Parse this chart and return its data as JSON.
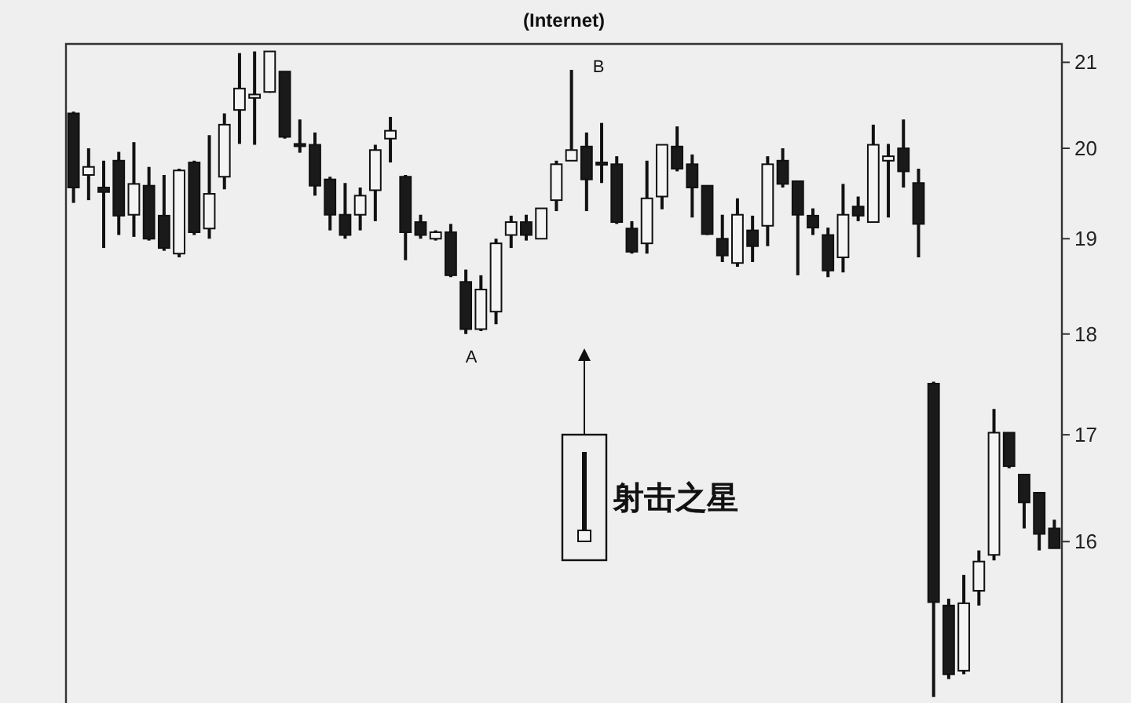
{
  "chart_data": {
    "type": "candlestick",
    "title": "(Internet)",
    "categories": [
      null,
      null,
      null,
      null,
      null,
      null,
      null,
      null,
      null,
      null,
      null,
      null,
      null,
      null,
      null,
      null,
      null,
      null,
      null,
      null,
      null,
      null,
      null,
      null,
      null,
      null,
      null,
      null,
      null,
      null,
      null,
      null,
      null,
      null,
      null,
      null,
      null,
      null,
      null,
      null,
      null,
      null,
      null,
      null,
      null,
      null,
      null,
      null,
      null,
      null,
      null,
      null,
      null,
      null,
      null,
      null,
      null,
      null,
      null,
      null,
      null,
      null,
      null,
      null,
      null,
      null
    ],
    "ohlc": [
      [
        20.4,
        20.42,
        19.39,
        19.56
      ],
      [
        19.7,
        20.0,
        19.42,
        19.79
      ],
      [
        19.56,
        19.86,
        18.9,
        19.51
      ],
      [
        19.86,
        19.96,
        19.04,
        19.25
      ],
      [
        19.26,
        20.07,
        19.02,
        19.6
      ],
      [
        19.58,
        19.79,
        18.98,
        19.0
      ],
      [
        19.25,
        19.7,
        18.87,
        18.9
      ],
      [
        18.84,
        19.77,
        18.8,
        19.75
      ],
      [
        19.84,
        19.86,
        19.04,
        19.07
      ],
      [
        19.11,
        20.15,
        19.0,
        19.49
      ],
      [
        19.68,
        20.4,
        19.54,
        20.27
      ],
      [
        20.44,
        21.11,
        20.05,
        20.69
      ],
      [
        20.58,
        21.13,
        20.04,
        20.62
      ],
      [
        20.65,
        21.13,
        20.64,
        21.13
      ],
      [
        20.89,
        20.89,
        20.11,
        20.13
      ],
      [
        20.05,
        20.33,
        19.95,
        20.03
      ],
      [
        20.04,
        20.18,
        19.47,
        19.58
      ],
      [
        19.65,
        19.68,
        19.09,
        19.26
      ],
      [
        19.26,
        19.61,
        19.0,
        19.04
      ],
      [
        19.26,
        19.56,
        19.09,
        19.47
      ],
      [
        19.53,
        20.04,
        19.19,
        19.98
      ],
      [
        20.11,
        20.36,
        19.84,
        20.2
      ],
      [
        19.68,
        19.7,
        18.77,
        19.07
      ],
      [
        19.18,
        19.26,
        19.0,
        19.04
      ],
      [
        19.0,
        19.09,
        18.98,
        19.07
      ],
      [
        19.07,
        19.16,
        18.59,
        18.61
      ],
      [
        18.54,
        18.67,
        18.0,
        18.05
      ],
      [
        18.05,
        18.61,
        18.03,
        18.46
      ],
      [
        18.23,
        19.0,
        18.1,
        18.95
      ],
      [
        19.04,
        19.25,
        18.9,
        19.18
      ],
      [
        19.18,
        19.26,
        18.98,
        19.04
      ],
      [
        19.0,
        19.33,
        19.0,
        19.33
      ],
      [
        19.42,
        19.86,
        19.3,
        19.82
      ],
      [
        19.86,
        20.91,
        19.86,
        19.98
      ],
      [
        20.02,
        20.18,
        19.3,
        19.65
      ],
      [
        19.84,
        20.29,
        19.61,
        19.82
      ],
      [
        19.82,
        19.91,
        19.16,
        19.18
      ],
      [
        19.11,
        19.19,
        18.84,
        18.86
      ],
      [
        18.95,
        19.86,
        18.84,
        19.44
      ],
      [
        19.46,
        20.04,
        19.32,
        20.04
      ],
      [
        20.02,
        20.25,
        19.74,
        19.77
      ],
      [
        19.82,
        19.93,
        19.23,
        19.56
      ],
      [
        19.58,
        19.58,
        19.04,
        19.05
      ],
      [
        19.0,
        19.26,
        18.75,
        18.82
      ],
      [
        18.74,
        19.44,
        18.7,
        19.26
      ],
      [
        19.09,
        19.25,
        18.75,
        18.92
      ],
      [
        19.14,
        19.91,
        18.92,
        19.82
      ],
      [
        19.86,
        20.0,
        19.56,
        19.6
      ],
      [
        19.63,
        19.63,
        18.61,
        19.26
      ],
      [
        19.25,
        19.33,
        19.04,
        19.12
      ],
      [
        19.04,
        19.12,
        18.59,
        18.66
      ],
      [
        18.8,
        19.6,
        18.64,
        19.26
      ],
      [
        19.35,
        19.46,
        19.19,
        19.25
      ],
      [
        19.18,
        20.27,
        19.18,
        20.04
      ],
      [
        19.86,
        20.05,
        19.23,
        19.91
      ],
      [
        20.0,
        20.33,
        19.56,
        19.74
      ],
      [
        19.61,
        19.77,
        18.8,
        19.16
      ],
      [
        17.5,
        17.52,
        14.65,
        15.46
      ],
      [
        15.43,
        15.49,
        14.8,
        14.84
      ],
      [
        14.87,
        15.7,
        14.84,
        15.45
      ],
      [
        15.56,
        15.92,
        15.43,
        15.82
      ],
      [
        15.88,
        17.25,
        15.83,
        17.02
      ],
      [
        17.02,
        17.02,
        16.68,
        16.7
      ],
      [
        16.62,
        16.62,
        16.12,
        16.36
      ],
      [
        16.45,
        16.45,
        15.92,
        16.07
      ],
      [
        16.12,
        16.2,
        15.94,
        15.94
      ]
    ],
    "ylim": [
      14.6,
      21.22
    ],
    "yticks": [
      16,
      17,
      18,
      19,
      20,
      21
    ],
    "log": true,
    "tick_labels": "y",
    "annotations": [
      "A",
      "B",
      "射击之星"
    ]
  }
}
